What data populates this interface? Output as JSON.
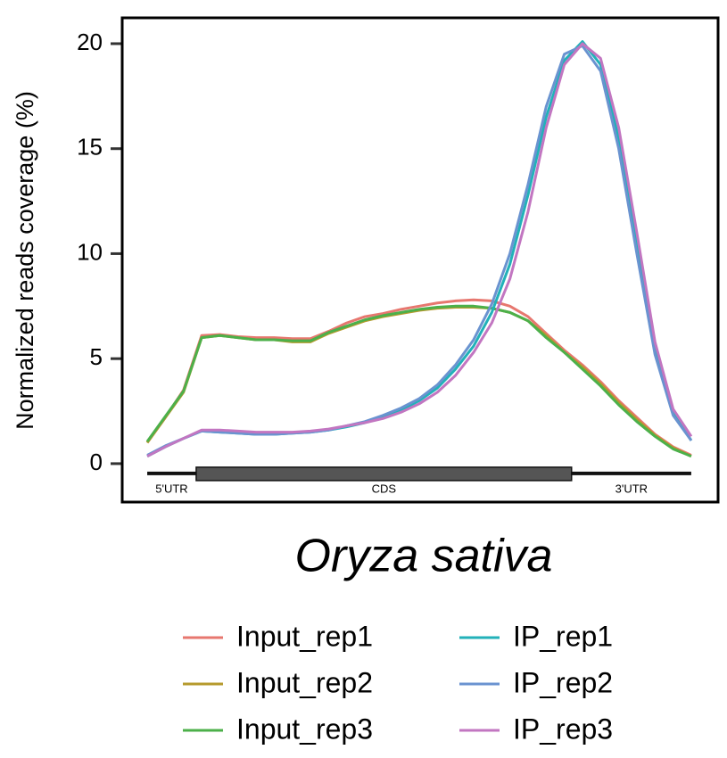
{
  "chart_data": {
    "type": "line",
    "title": "Oryza sativa",
    "y_label": "Normalized reads coverage (%)",
    "x": [
      0,
      1,
      2,
      3,
      4,
      5,
      6,
      7,
      8,
      9,
      10,
      11,
      12,
      13,
      14,
      15,
      16,
      17,
      18,
      19,
      20,
      21,
      22,
      23,
      24,
      25,
      26,
      27,
      28,
      29,
      30
    ],
    "xlim": [
      -1.38,
      31.48
    ],
    "ylim": [
      -1.83,
      21.23
    ],
    "yticks": [
      0,
      5,
      10,
      15,
      20
    ],
    "regions": [
      {
        "label": "5'UTR",
        "start": 0,
        "end": 2.7
      },
      {
        "label": "CDS",
        "start": 2.7,
        "end": 23.4
      },
      {
        "label": "3'UTR",
        "start": 23.4,
        "end": 30
      }
    ],
    "series": [
      {
        "name": "Input_rep1",
        "color": "#e7776f",
        "values": [
          1.0,
          2.2,
          3.5,
          6.1,
          6.15,
          6.05,
          6.0,
          6.0,
          5.95,
          5.95,
          6.3,
          6.7,
          7.0,
          7.15,
          7.35,
          7.5,
          7.65,
          7.75,
          7.8,
          7.75,
          7.5,
          7.0,
          6.2,
          5.4,
          4.7,
          3.9,
          3.0,
          2.2,
          1.4,
          0.8,
          0.4
        ]
      },
      {
        "name": "Input_rep2",
        "color": "#b59a2d",
        "values": [
          1.0,
          2.2,
          3.4,
          6.0,
          6.1,
          6.0,
          5.9,
          5.9,
          5.8,
          5.8,
          6.2,
          6.5,
          6.8,
          7.0,
          7.15,
          7.3,
          7.4,
          7.45,
          7.45,
          7.4,
          7.2,
          6.8,
          6.1,
          5.3,
          4.6,
          3.8,
          2.9,
          2.1,
          1.35,
          0.75,
          0.35
        ]
      },
      {
        "name": "Input_rep3",
        "color": "#4cb04a",
        "values": [
          1.05,
          2.25,
          3.45,
          6.0,
          6.1,
          6.0,
          5.9,
          5.9,
          5.85,
          5.85,
          6.25,
          6.55,
          6.85,
          7.05,
          7.2,
          7.35,
          7.45,
          7.5,
          7.5,
          7.4,
          7.2,
          6.8,
          6.0,
          5.3,
          4.5,
          3.7,
          2.8,
          2.0,
          1.3,
          0.7,
          0.35
        ]
      },
      {
        "name": "IP_rep1",
        "color": "#22b1b9",
        "values": [
          0.35,
          0.8,
          1.2,
          1.55,
          1.5,
          1.45,
          1.4,
          1.4,
          1.45,
          1.5,
          1.6,
          1.75,
          1.95,
          2.2,
          2.55,
          3.0,
          3.6,
          4.5,
          5.6,
          7.2,
          9.5,
          12.8,
          16.5,
          19.2,
          20.1,
          19.0,
          15.5,
          10.5,
          5.5,
          2.5,
          1.1
        ]
      },
      {
        "name": "IP_rep2",
        "color": "#6a93d0",
        "values": [
          0.4,
          0.85,
          1.2,
          1.55,
          1.5,
          1.45,
          1.4,
          1.4,
          1.45,
          1.5,
          1.6,
          1.8,
          2.0,
          2.3,
          2.65,
          3.1,
          3.75,
          4.7,
          5.9,
          7.6,
          10.0,
          13.3,
          17.0,
          19.5,
          19.9,
          18.7,
          15.0,
          10.0,
          5.2,
          2.3,
          1.1
        ]
      },
      {
        "name": "IP_rep3",
        "color": "#c276c1",
        "values": [
          0.35,
          0.8,
          1.2,
          1.6,
          1.6,
          1.55,
          1.5,
          1.5,
          1.5,
          1.55,
          1.65,
          1.8,
          1.95,
          2.15,
          2.45,
          2.85,
          3.4,
          4.2,
          5.3,
          6.7,
          8.8,
          12.0,
          16.0,
          19.0,
          20.0,
          19.3,
          16.0,
          11.0,
          5.8,
          2.6,
          1.3
        ]
      }
    ]
  }
}
